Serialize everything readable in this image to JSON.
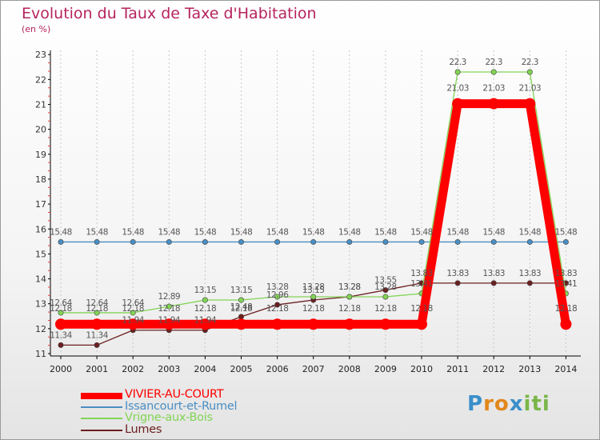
{
  "header": {
    "title": "Evolution du Taux de Taxe d'Habitation",
    "unit": "(en %)"
  },
  "brand": {
    "logo_text": "Proxiti",
    "letter_colors": [
      "#3a8fc9",
      "#e2871c",
      "#e2871c",
      "#3a8fc9",
      "#7ab648",
      "#7ab648",
      "#7ab648"
    ]
  },
  "chart_data": {
    "type": "line",
    "title": "Evolution du Taux de Taxe d'Habitation",
    "ylabel": "(en %)",
    "xlabel": "",
    "x": [
      "2000",
      "2001",
      "2002",
      "2003",
      "2004",
      "2005",
      "2006",
      "2007",
      "2008",
      "2009",
      "2010",
      "2011",
      "2012",
      "2013",
      "2014"
    ],
    "ylim": [
      11,
      23
    ],
    "yticks": [
      "11",
      "12",
      "13",
      "14",
      "15",
      "16",
      "17",
      "18",
      "19",
      "20",
      "21",
      "22",
      "23"
    ],
    "grid": "vertical dashed",
    "legend_position": "bottom-left",
    "series": [
      {
        "name": "VIVIER-AU-COURT",
        "color": "#ff0000",
        "values": [
          12.18,
          12.18,
          12.18,
          12.18,
          12.18,
          12.18,
          12.18,
          12.18,
          12.18,
          12.18,
          12.18,
          21.03,
          21.03,
          21.03,
          12.18
        ],
        "labels": [
          "12.18",
          "12.18",
          "12.18",
          "12.18",
          "12.18",
          "12.18",
          "12.18",
          "12.18",
          "12.18",
          "12.18",
          "12.18",
          "21.03",
          "21.03",
          "21.03",
          "12.18"
        ]
      },
      {
        "name": "Issancourt-et-Rumel",
        "color": "#4a8ec2",
        "values": [
          15.48,
          15.48,
          15.48,
          15.48,
          15.48,
          15.48,
          15.48,
          15.48,
          15.48,
          15.48,
          15.48,
          15.48,
          15.48,
          15.48,
          15.48
        ],
        "labels": [
          "15.48",
          "15.48",
          "15.48",
          "15.48",
          "15.48",
          "15.48",
          "15.48",
          "15.48",
          "15.48",
          "15.48",
          "15.48",
          "15.48",
          "15.48",
          "15.48",
          "15.48"
        ]
      },
      {
        "name": "Vrigne-aux-Bois",
        "color": "#82d455",
        "values": [
          12.64,
          12.64,
          12.64,
          12.89,
          13.15,
          13.15,
          13.28,
          13.28,
          13.28,
          13.28,
          13.41,
          22.3,
          22.3,
          22.3,
          13.41
        ],
        "labels": [
          "12.64",
          "12.64",
          "12.64",
          "12.89",
          "13.15",
          "13.15",
          "13.28",
          "13.28",
          "13.28",
          "13.28",
          "13.41",
          "22.3",
          "22.3",
          "22.3",
          "13.41"
        ]
      },
      {
        "name": "Lumes",
        "color": "#6b1f1f",
        "values": [
          11.34,
          11.34,
          11.94,
          11.94,
          11.94,
          12.48,
          12.96,
          13.15,
          13.28,
          13.55,
          13.83,
          13.83,
          13.83,
          13.83,
          13.83
        ],
        "labels": [
          "11.34",
          "11.34",
          "11.94",
          "11.94",
          "11.94",
          "12.48",
          "12.96",
          "13.15",
          "13.28",
          "13.55",
          "13.83",
          "13.83",
          "13.83",
          "13.83",
          "13.83"
        ]
      }
    ]
  }
}
